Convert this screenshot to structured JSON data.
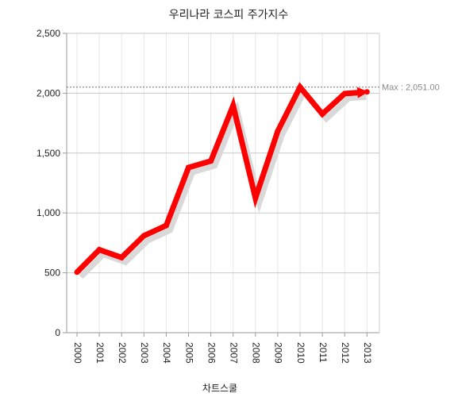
{
  "chart_data": {
    "type": "line",
    "title": "우리나라 코스피 주가지수",
    "xlabel": "차트스쿨",
    "ylabel": "",
    "ylim": [
      0,
      2500
    ],
    "yticks": [
      0,
      500,
      1000,
      1500,
      2000,
      2500
    ],
    "ytick_labels": [
      "0",
      "500",
      "1,000",
      "1,500",
      "2,000",
      "2,500"
    ],
    "categories": [
      "2000",
      "2001",
      "2002",
      "2003",
      "2004",
      "2005",
      "2006",
      "2007",
      "2008",
      "2009",
      "2010",
      "2011",
      "2012",
      "2013"
    ],
    "series": [
      {
        "values": [
          505,
          693,
          628,
          810,
          895,
          1379,
          1434,
          1897,
          1124,
          1683,
          2051,
          1826,
          1997,
          2011
        ]
      }
    ],
    "line_color": "#ff0000",
    "shadow_color": "#d9d9d9",
    "grid": true,
    "max_annotation": "Max : 2,051.00",
    "max_value": 2051
  }
}
